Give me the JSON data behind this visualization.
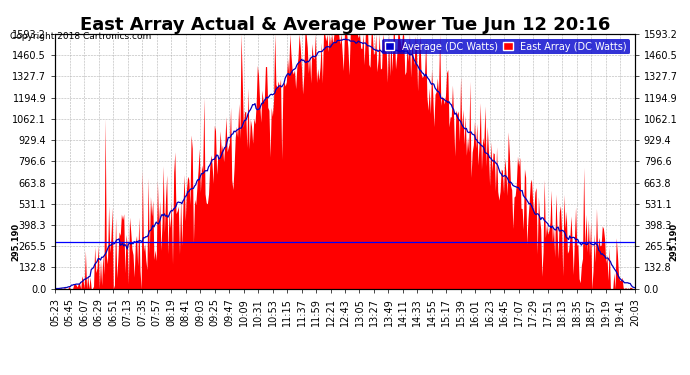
{
  "title": "East Array Actual & Average Power Tue Jun 12 20:16",
  "copyright": "Copyright 2018 Cartronics.com",
  "legend_labels": [
    "Average (DC Watts)",
    "East Array (DC Watts)"
  ],
  "legend_colors": [
    "#0000cc",
    "#ff0000"
  ],
  "yticks": [
    0.0,
    132.8,
    265.5,
    398.3,
    531.1,
    663.8,
    796.6,
    929.4,
    1062.1,
    1194.9,
    1327.7,
    1460.5,
    1593.2
  ],
  "ymax": 1593.2,
  "ymin": 0.0,
  "hline_value": 295.19,
  "hline_label": "295.190",
  "fill_color": "#ff0000",
  "avg_color": "#0000bb",
  "background_color": "#ffffff",
  "plot_bg_color": "#ffffff",
  "grid_color": "#aaaaaa",
  "title_fontsize": 13,
  "tick_fontsize": 7,
  "xtick_labels": [
    "05:23",
    "05:45",
    "06:07",
    "06:29",
    "06:51",
    "07:13",
    "07:35",
    "07:57",
    "08:19",
    "08:41",
    "09:03",
    "09:25",
    "09:47",
    "10:09",
    "10:31",
    "10:53",
    "11:15",
    "11:37",
    "11:59",
    "12:21",
    "12:43",
    "13:05",
    "13:27",
    "13:49",
    "14:11",
    "14:33",
    "14:55",
    "15:17",
    "15:39",
    "16:01",
    "16:23",
    "16:45",
    "17:07",
    "17:29",
    "17:51",
    "18:13",
    "18:35",
    "18:57",
    "19:19",
    "19:41",
    "20:03"
  ],
  "num_points": 500
}
